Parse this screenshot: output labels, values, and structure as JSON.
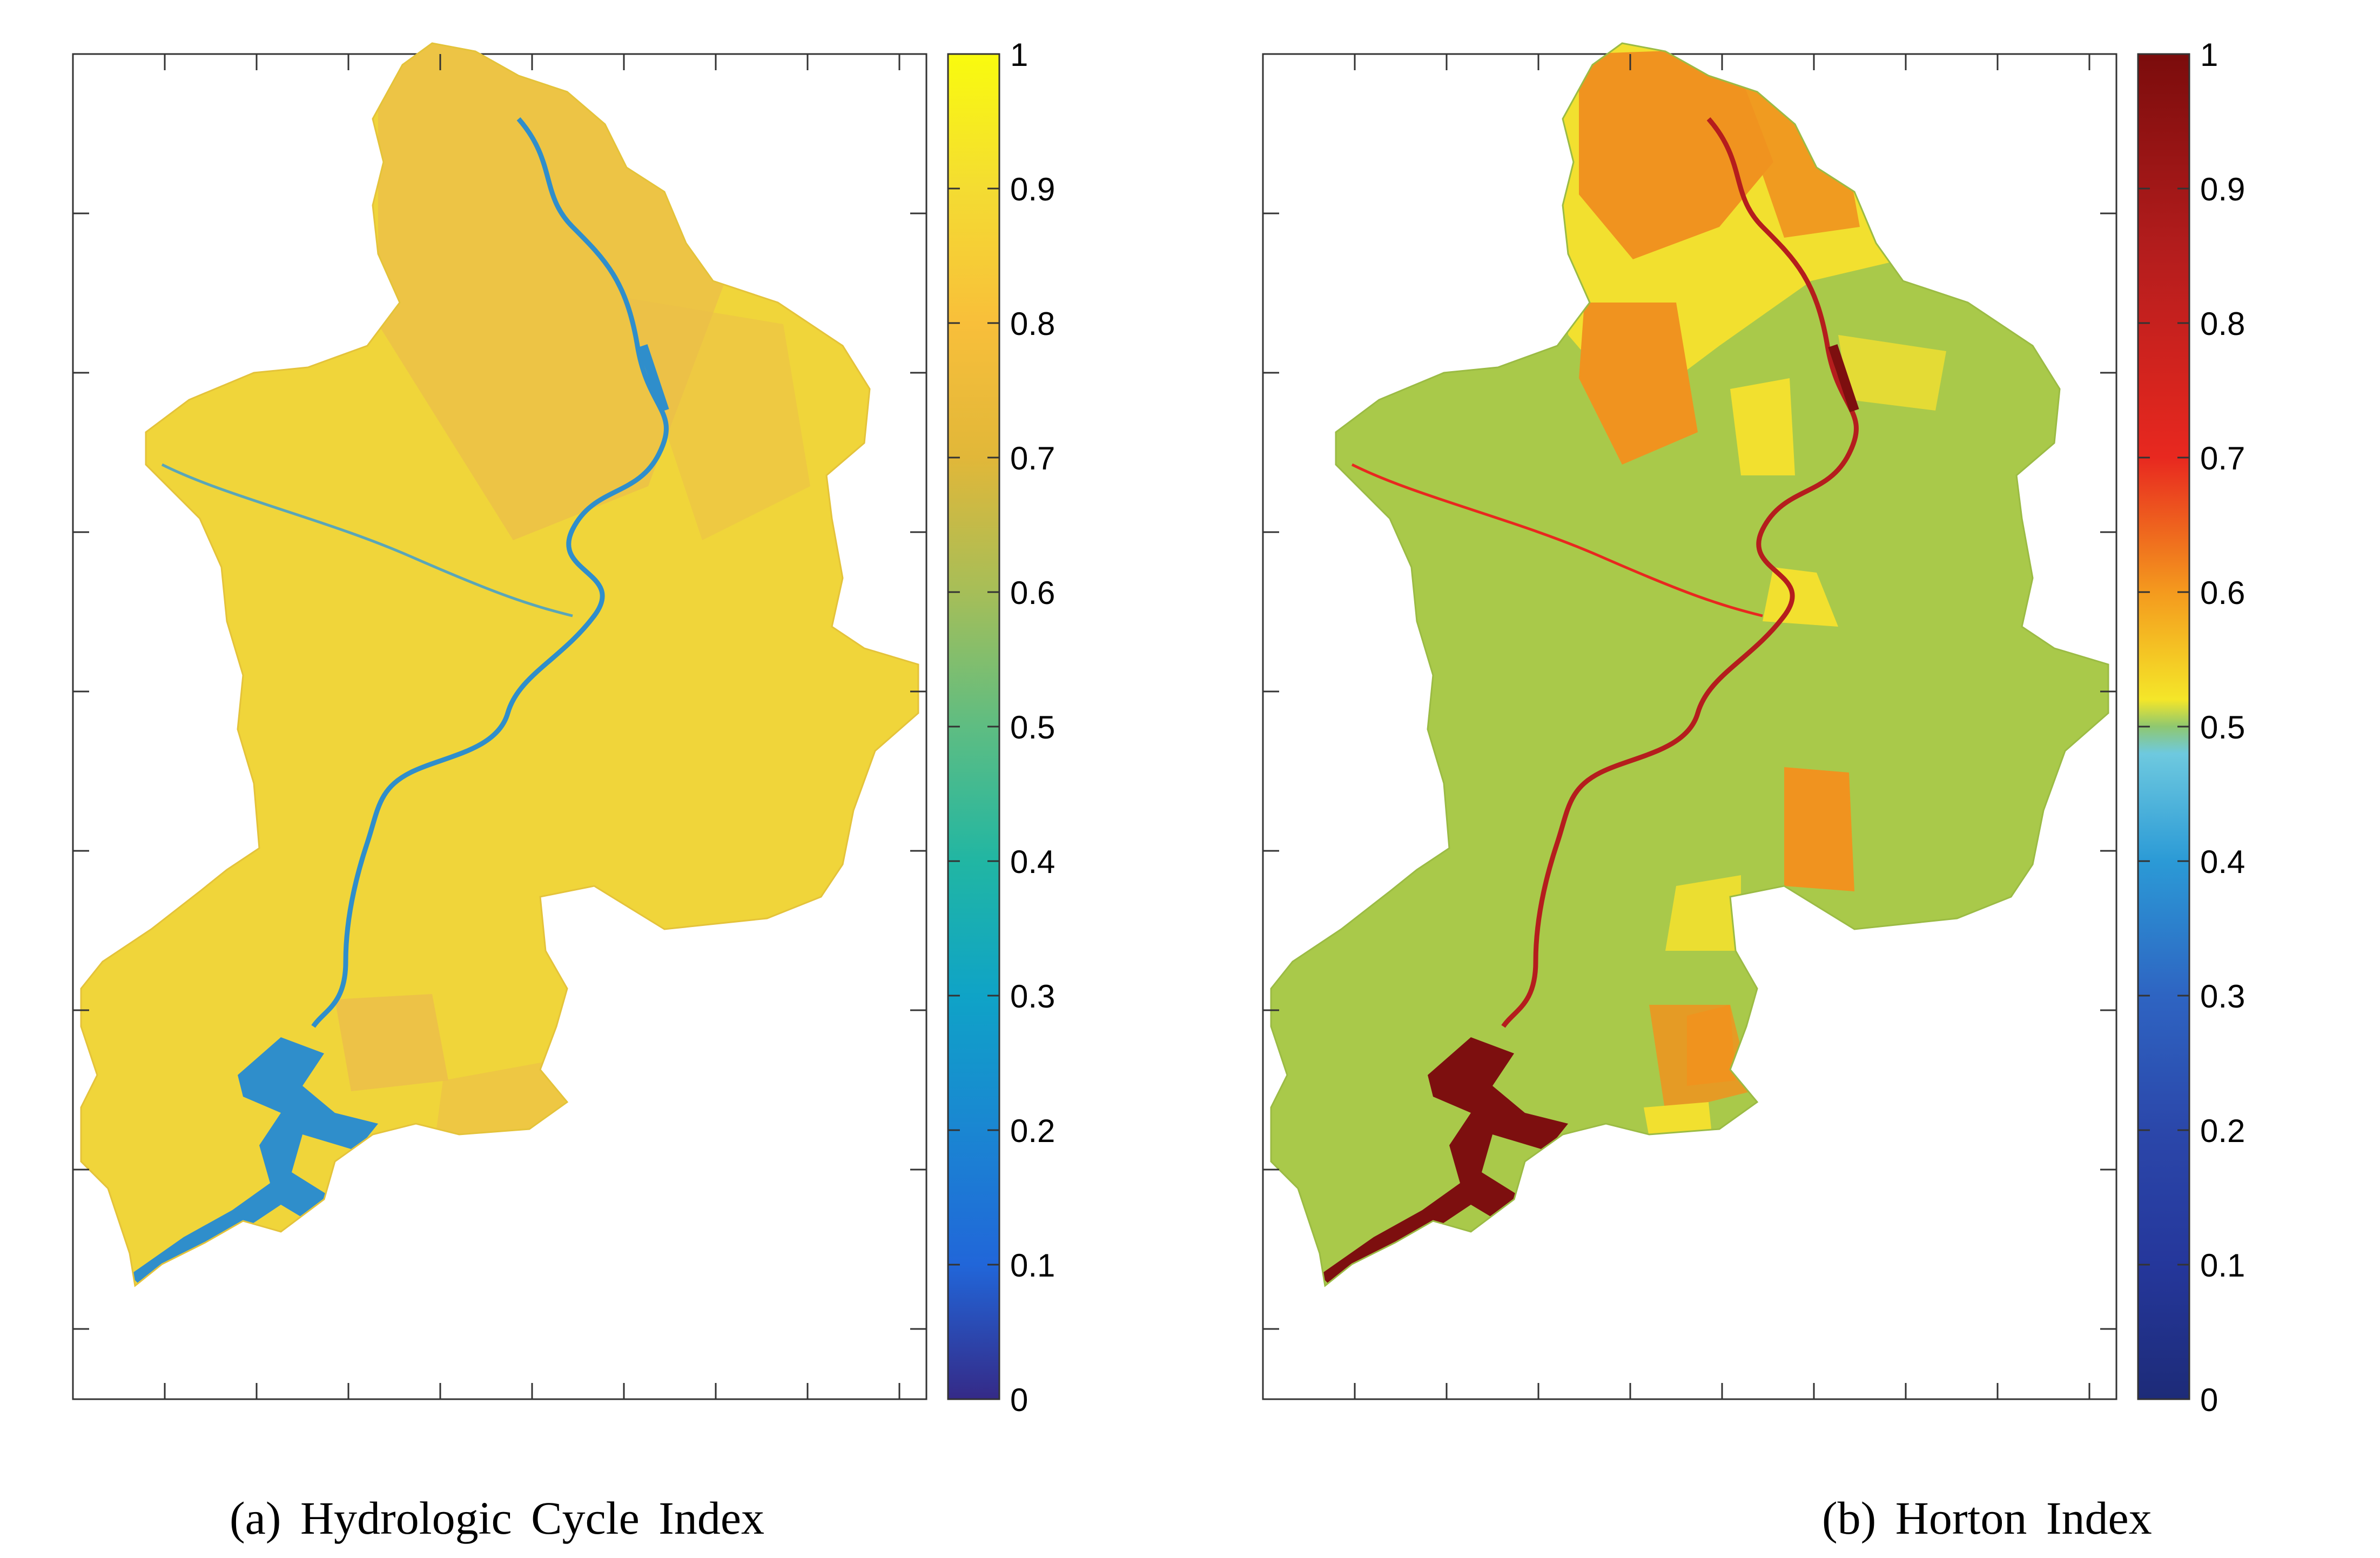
{
  "panels": [
    {
      "caption": "(a)  Hydrologic  Cycle  Index",
      "colorbar": {
        "colormap": "parula",
        "min": 0,
        "max": 1,
        "ticks": [
          "0",
          "0.1",
          "0.2",
          "0.3",
          "0.4",
          "0.5",
          "0.6",
          "0.7",
          "0.8",
          "0.9",
          "1"
        ],
        "stops": [
          "#352a87",
          "#2166d9",
          "#1a86d2",
          "#0fa3c7",
          "#21b6a3",
          "#5ebd82",
          "#a6be58",
          "#e1b739",
          "#f8bf3a",
          "#f4dc32",
          "#f9fb0e"
        ]
      },
      "map_colors": {
        "land": "#f0d53a",
        "land_patches": "#ecbe4a",
        "water": "#2f8ecb"
      }
    },
    {
      "caption": "(b)  Horton  Index",
      "colorbar": {
        "colormap": "jet-like",
        "min": 0,
        "max": 1,
        "ticks": [
          "0",
          "0.1",
          "0.2",
          "0.3",
          "0.4",
          "0.5",
          "0.6",
          "0.7",
          "0.8",
          "0.9",
          "1"
        ],
        "stops": [
          "#1d2b78",
          "#25379b",
          "#2b47aa",
          "#2e64c2",
          "#2b9ad6",
          "#6ec9df",
          "#f4e629",
          "#f49a1e",
          "#e8281f",
          "#b51d1d",
          "#7b0c0c"
        ]
      },
      "map_colors": {
        "land": "#a9c94a",
        "land_patches": "#f2e02f",
        "hot_patches": "#f0931f",
        "water": "#7d0f0f"
      }
    }
  ]
}
